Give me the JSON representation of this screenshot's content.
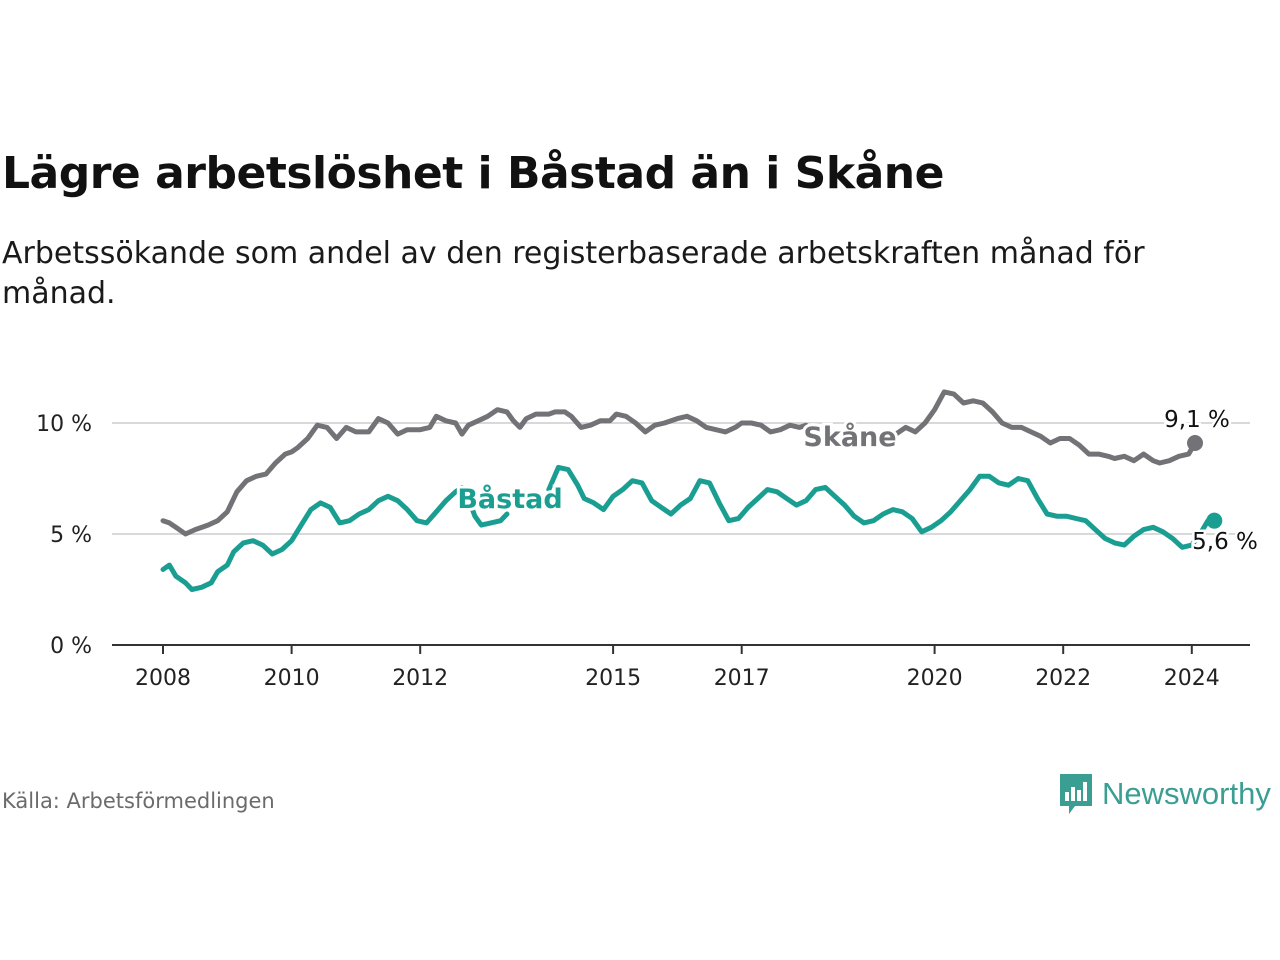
{
  "title": "Lägre arbetslöshet i Båstad än i Skåne",
  "subtitle": "Arbetssökande som andel av den registerbaserade arbetskraften månad för månad.",
  "source": "Källa: Arbetsförmedlingen",
  "brand": {
    "name": "Newsworthy",
    "icon": "newsworthy-logo-icon"
  },
  "colors": {
    "skane": "#737277",
    "bastad": "#1a9e92",
    "grid": "#d9d9d9",
    "axis": "#333333"
  },
  "chart_data": {
    "type": "line",
    "title": "Lägre arbetslöshet i Båstad än i Skåne",
    "xlabel": "",
    "ylabel": "",
    "xlim": [
      2007.6,
      2024.9
    ],
    "ylim": [
      0,
      10
    ],
    "x_ticks": [
      {
        "value": 2008,
        "label": "2008"
      },
      {
        "value": 2010,
        "label": "2010"
      },
      {
        "value": 2012,
        "label": "2012"
      },
      {
        "value": 2015,
        "label": "2015"
      },
      {
        "value": 2017,
        "label": "2017"
      },
      {
        "value": 2020,
        "label": "2020"
      },
      {
        "value": 2022,
        "label": "2022"
      },
      {
        "value": 2024,
        "label": "2024"
      }
    ],
    "y_ticks": [
      {
        "value": 0,
        "label": "0 %"
      },
      {
        "value": 5,
        "label": "5 %"
      },
      {
        "value": 10,
        "label": "10 %"
      }
    ],
    "grid": true,
    "series": [
      {
        "name": "Skåne",
        "color": "#737277",
        "end_label": "9,1 %",
        "points": [
          [
            2008.0,
            5.6
          ],
          [
            2008.1,
            5.5
          ],
          [
            2008.2,
            5.3
          ],
          [
            2008.35,
            5.0
          ],
          [
            2008.5,
            5.2
          ],
          [
            2008.7,
            5.4
          ],
          [
            2008.85,
            5.6
          ],
          [
            2009.0,
            6.0
          ],
          [
            2009.15,
            6.9
          ],
          [
            2009.3,
            7.4
          ],
          [
            2009.45,
            7.6
          ],
          [
            2009.6,
            7.7
          ],
          [
            2009.75,
            8.2
          ],
          [
            2009.9,
            8.6
          ],
          [
            2010.0,
            8.7
          ],
          [
            2010.1,
            8.9
          ],
          [
            2010.25,
            9.3
          ],
          [
            2010.4,
            9.9
          ],
          [
            2010.55,
            9.8
          ],
          [
            2010.7,
            9.3
          ],
          [
            2010.85,
            9.8
          ],
          [
            2011.0,
            9.6
          ],
          [
            2011.2,
            9.6
          ],
          [
            2011.35,
            10.2
          ],
          [
            2011.5,
            10.0
          ],
          [
            2011.65,
            9.5
          ],
          [
            2011.8,
            9.7
          ],
          [
            2012.0,
            9.7
          ],
          [
            2012.15,
            9.8
          ],
          [
            2012.25,
            10.3
          ],
          [
            2012.4,
            10.1
          ],
          [
            2012.55,
            10.0
          ],
          [
            2012.65,
            9.5
          ],
          [
            2012.75,
            9.9
          ],
          [
            2012.9,
            10.1
          ],
          [
            2013.05,
            10.3
          ],
          [
            2013.2,
            10.6
          ],
          [
            2013.35,
            10.5
          ],
          [
            2013.45,
            10.1
          ],
          [
            2013.55,
            9.8
          ],
          [
            2013.65,
            10.2
          ],
          [
            2013.8,
            10.4
          ],
          [
            2014.0,
            10.4
          ],
          [
            2014.1,
            10.5
          ],
          [
            2014.25,
            10.5
          ],
          [
            2014.35,
            10.3
          ],
          [
            2014.5,
            9.8
          ],
          [
            2014.65,
            9.9
          ],
          [
            2014.8,
            10.1
          ],
          [
            2014.95,
            10.1
          ],
          [
            2015.05,
            10.4
          ],
          [
            2015.2,
            10.3
          ],
          [
            2015.35,
            10.0
          ],
          [
            2015.5,
            9.6
          ],
          [
            2015.65,
            9.9
          ],
          [
            2015.8,
            10.0
          ],
          [
            2016.0,
            10.2
          ],
          [
            2016.15,
            10.3
          ],
          [
            2016.3,
            10.1
          ],
          [
            2016.45,
            9.8
          ],
          [
            2016.6,
            9.7
          ],
          [
            2016.75,
            9.6
          ],
          [
            2016.9,
            9.8
          ],
          [
            2017.0,
            10.0
          ],
          [
            2017.15,
            10.0
          ],
          [
            2017.3,
            9.9
          ],
          [
            2017.45,
            9.6
          ],
          [
            2017.6,
            9.7
          ],
          [
            2017.75,
            9.9
          ],
          [
            2017.9,
            9.8
          ],
          [
            2018.0,
            9.9
          ],
          [
            null,
            null
          ],
          [
            2019.1,
            9.3
          ],
          [
            2019.25,
            9.4
          ],
          [
            2019.4,
            9.5
          ],
          [
            2019.55,
            9.8
          ],
          [
            2019.7,
            9.6
          ],
          [
            2019.85,
            10.0
          ],
          [
            2020.0,
            10.6
          ],
          [
            2020.15,
            11.4
          ],
          [
            2020.3,
            11.3
          ],
          [
            2020.45,
            10.9
          ],
          [
            2020.6,
            11.0
          ],
          [
            2020.75,
            10.9
          ],
          [
            2020.9,
            10.5
          ],
          [
            2021.05,
            10.0
          ],
          [
            2021.2,
            9.8
          ],
          [
            2021.35,
            9.8
          ],
          [
            2021.5,
            9.6
          ],
          [
            2021.65,
            9.4
          ],
          [
            2021.8,
            9.1
          ],
          [
            2021.95,
            9.3
          ],
          [
            2022.1,
            9.3
          ],
          [
            2022.25,
            9.0
          ],
          [
            2022.4,
            8.6
          ],
          [
            2022.55,
            8.6
          ],
          [
            2022.7,
            8.5
          ],
          [
            2022.8,
            8.4
          ],
          [
            2022.95,
            8.5
          ],
          [
            2023.1,
            8.3
          ],
          [
            2023.25,
            8.6
          ],
          [
            2023.4,
            8.3
          ],
          [
            2023.5,
            8.2
          ],
          [
            2023.65,
            8.3
          ],
          [
            2023.8,
            8.5
          ],
          [
            2023.95,
            8.6
          ],
          [
            2024.05,
            9.1
          ]
        ]
      },
      {
        "name": "Båstad",
        "color": "#1a9e92",
        "end_label": "5,6 %",
        "points": [
          [
            2008.0,
            3.4
          ],
          [
            2008.1,
            3.6
          ],
          [
            2008.2,
            3.1
          ],
          [
            2008.35,
            2.8
          ],
          [
            2008.45,
            2.5
          ],
          [
            2008.6,
            2.6
          ],
          [
            2008.75,
            2.8
          ],
          [
            2008.85,
            3.3
          ],
          [
            2009.0,
            3.6
          ],
          [
            2009.1,
            4.2
          ],
          [
            2009.25,
            4.6
          ],
          [
            2009.4,
            4.7
          ],
          [
            2009.55,
            4.5
          ],
          [
            2009.7,
            4.1
          ],
          [
            2009.85,
            4.3
          ],
          [
            2010.0,
            4.7
          ],
          [
            2010.15,
            5.4
          ],
          [
            2010.3,
            6.1
          ],
          [
            2010.45,
            6.4
          ],
          [
            2010.6,
            6.2
          ],
          [
            2010.75,
            5.5
          ],
          [
            2010.9,
            5.6
          ],
          [
            2011.05,
            5.9
          ],
          [
            2011.2,
            6.1
          ],
          [
            2011.35,
            6.5
          ],
          [
            2011.5,
            6.7
          ],
          [
            2011.65,
            6.5
          ],
          [
            2011.8,
            6.1
          ],
          [
            2011.95,
            5.6
          ],
          [
            2012.1,
            5.5
          ],
          [
            2012.25,
            6.0
          ],
          [
            2012.4,
            6.5
          ],
          [
            2012.55,
            6.9
          ],
          [
            2012.65,
            7.1
          ],
          [
            2012.75,
            6.6
          ],
          [
            2012.85,
            5.8
          ],
          [
            2012.95,
            5.4
          ],
          [
            2013.1,
            5.5
          ],
          [
            2013.25,
            5.6
          ],
          [
            2013.35,
            5.9
          ],
          [
            null,
            null
          ],
          [
            2014.0,
            7.0
          ],
          [
            2014.15,
            8.0
          ],
          [
            2014.3,
            7.9
          ],
          [
            2014.45,
            7.2
          ],
          [
            2014.55,
            6.6
          ],
          [
            2014.7,
            6.4
          ],
          [
            2014.85,
            6.1
          ],
          [
            2015.0,
            6.7
          ],
          [
            2015.15,
            7.0
          ],
          [
            2015.3,
            7.4
          ],
          [
            2015.45,
            7.3
          ],
          [
            2015.6,
            6.5
          ],
          [
            2015.75,
            6.2
          ],
          [
            2015.9,
            5.9
          ],
          [
            2016.05,
            6.3
          ],
          [
            2016.2,
            6.6
          ],
          [
            2016.35,
            7.4
          ],
          [
            2016.5,
            7.3
          ],
          [
            2016.65,
            6.4
          ],
          [
            2016.8,
            5.6
          ],
          [
            2016.95,
            5.7
          ],
          [
            2017.1,
            6.2
          ],
          [
            2017.25,
            6.6
          ],
          [
            2017.4,
            7.0
          ],
          [
            2017.55,
            6.9
          ],
          [
            2017.7,
            6.6
          ],
          [
            2017.85,
            6.3
          ],
          [
            2018.0,
            6.5
          ],
          [
            2018.15,
            7.0
          ],
          [
            2018.3,
            7.1
          ],
          [
            2018.45,
            6.7
          ],
          [
            2018.6,
            6.3
          ],
          [
            2018.75,
            5.8
          ],
          [
            2018.9,
            5.5
          ],
          [
            2019.05,
            5.6
          ],
          [
            2019.2,
            5.9
          ],
          [
            2019.35,
            6.1
          ],
          [
            2019.5,
            6.0
          ],
          [
            2019.65,
            5.7
          ],
          [
            2019.8,
            5.1
          ],
          [
            2019.95,
            5.3
          ],
          [
            2020.1,
            5.6
          ],
          [
            2020.25,
            6.0
          ],
          [
            2020.4,
            6.5
          ],
          [
            2020.55,
            7.0
          ],
          [
            2020.7,
            7.6
          ],
          [
            2020.85,
            7.6
          ],
          [
            2021.0,
            7.3
          ],
          [
            2021.15,
            7.2
          ],
          [
            2021.3,
            7.5
          ],
          [
            2021.45,
            7.4
          ],
          [
            2021.6,
            6.6
          ],
          [
            2021.75,
            5.9
          ],
          [
            2021.9,
            5.8
          ],
          [
            2022.05,
            5.8
          ],
          [
            2022.2,
            5.7
          ],
          [
            2022.35,
            5.6
          ],
          [
            2022.5,
            5.2
          ],
          [
            2022.65,
            4.8
          ],
          [
            2022.8,
            4.6
          ],
          [
            2022.95,
            4.5
          ],
          [
            2023.1,
            4.9
          ],
          [
            2023.25,
            5.2
          ],
          [
            2023.4,
            5.3
          ],
          [
            2023.55,
            5.1
          ],
          [
            2023.7,
            4.8
          ],
          [
            2023.85,
            4.4
          ],
          [
            2024.0,
            4.5
          ],
          [
            2024.15,
            5.1
          ],
          [
            2024.25,
            5.6
          ],
          [
            2024.35,
            5.6
          ]
        ]
      }
    ]
  }
}
